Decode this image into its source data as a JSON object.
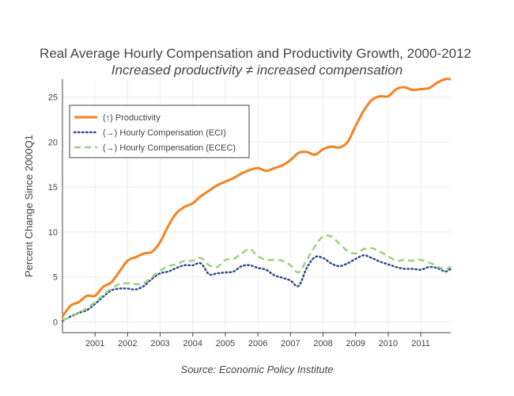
{
  "chart_data": {
    "type": "line",
    "title": "Real Average Hourly Compensation and Productivity Growth, 2000-2012",
    "subtitle": "Increased productivity ≠ increased compensation",
    "ylabel": "Percent Change Since 2000Q1",
    "xlabel": "",
    "source": "Source: Economic Policy Institute",
    "xlim": [
      2000.0,
      2011.92
    ],
    "ylim": [
      -1.2,
      27
    ],
    "x_ticks": [
      "2001",
      "2002",
      "2003",
      "2004",
      "2005",
      "2006",
      "2007",
      "2008",
      "2009",
      "2010",
      "2011"
    ],
    "y_ticks": [
      "0",
      "5",
      "10",
      "15",
      "20",
      "25"
    ],
    "grid": true,
    "legend_position": "top-left",
    "x": [
      2000.0,
      2000.25,
      2000.5,
      2000.75,
      2001.0,
      2001.25,
      2001.5,
      2001.75,
      2002.0,
      2002.25,
      2002.5,
      2002.75,
      2003.0,
      2003.25,
      2003.5,
      2003.75,
      2004.0,
      2004.25,
      2004.5,
      2004.75,
      2005.0,
      2005.25,
      2005.5,
      2005.75,
      2006.0,
      2006.25,
      2006.5,
      2006.75,
      2007.0,
      2007.25,
      2007.5,
      2007.75,
      2008.0,
      2008.25,
      2008.5,
      2008.75,
      2009.0,
      2009.25,
      2009.5,
      2009.75,
      2010.0,
      2010.25,
      2010.5,
      2010.75,
      2011.0,
      2011.25,
      2011.5,
      2011.75,
      2011.92
    ],
    "series": [
      {
        "name": "(↑) Productivity",
        "color": "#f5821f",
        "dash": "solid",
        "values": [
          0.6,
          1.8,
          2.2,
          2.9,
          2.9,
          3.9,
          4.4,
          5.6,
          6.8,
          7.2,
          7.6,
          7.8,
          8.9,
          10.7,
          12.1,
          12.8,
          13.2,
          14.0,
          14.6,
          15.2,
          15.6,
          16.0,
          16.5,
          16.9,
          17.1,
          16.8,
          17.1,
          17.4,
          18.0,
          18.8,
          18.9,
          18.6,
          19.2,
          19.5,
          19.4,
          20.0,
          21.8,
          23.5,
          24.7,
          25.1,
          25.1,
          25.9,
          26.1,
          25.8,
          25.9,
          26.0,
          26.6,
          27.0,
          27.0
        ]
      },
      {
        "name": "(→) Hourly Compensation (ECI)",
        "color": "#2b4a8b",
        "dash": "dotted",
        "values": [
          0.1,
          0.6,
          1.0,
          1.3,
          2.0,
          2.8,
          3.5,
          3.7,
          3.7,
          3.6,
          4.0,
          4.8,
          5.4,
          5.6,
          6.0,
          6.3,
          6.3,
          6.5,
          5.3,
          5.4,
          5.5,
          5.6,
          6.2,
          6.3,
          6.0,
          5.8,
          5.2,
          4.9,
          4.6,
          4.0,
          6.0,
          7.2,
          7.1,
          6.5,
          6.2,
          6.5,
          7.0,
          7.4,
          7.1,
          6.7,
          6.4,
          6.1,
          5.9,
          5.9,
          5.8,
          6.1,
          6.0,
          5.6,
          5.9
        ]
      },
      {
        "name": "(→) Hourly Compensation (ECEC)",
        "color": "#9dd17f",
        "dash": "dashed",
        "values": [
          0.2,
          0.5,
          1.0,
          1.5,
          2.2,
          3.0,
          3.7,
          4.2,
          4.3,
          4.2,
          4.3,
          5.0,
          5.7,
          6.2,
          6.4,
          6.8,
          6.8,
          7.1,
          6.3,
          6.1,
          6.9,
          7.0,
          7.6,
          8.1,
          7.3,
          6.9,
          6.9,
          6.8,
          6.3,
          5.5,
          6.9,
          8.4,
          9.5,
          9.5,
          8.7,
          7.9,
          7.6,
          8.1,
          8.2,
          7.8,
          7.3,
          6.8,
          6.9,
          6.8,
          6.9,
          6.6,
          6.2,
          5.8,
          6.2
        ]
      }
    ]
  }
}
